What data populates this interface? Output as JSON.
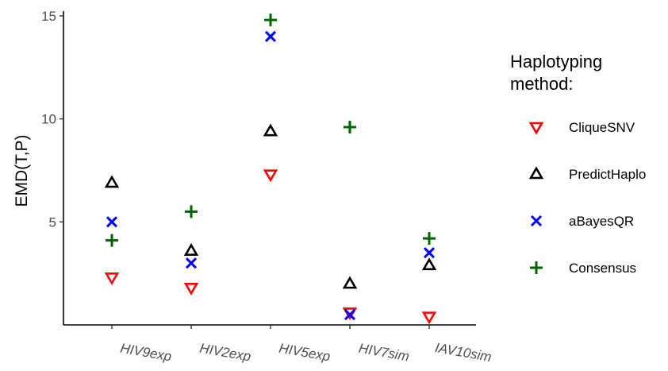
{
  "chart_data": {
    "type": "scatter",
    "title": "",
    "xlabel": "",
    "ylabel": "EMD(T,P)",
    "categories": [
      "HIV9exp",
      "HIV2exp",
      "HIV5exp",
      "HIV7sim",
      "IAV10sim"
    ],
    "ylim": [
      0,
      15
    ],
    "yticks": [
      5,
      10,
      15
    ],
    "grid": false,
    "legend": {
      "title_lines": [
        "Haplotyping",
        "method:"
      ],
      "placement": "right"
    },
    "series": [
      {
        "name": "CliqueSNV",
        "marker": "triangle-down",
        "color": "#ff0000",
        "values": [
          2.3,
          1.8,
          7.3,
          0.6,
          0.4
        ]
      },
      {
        "name": "PredictHaplo",
        "marker": "triangle-up",
        "color": "#000000",
        "values": [
          6.9,
          3.6,
          9.4,
          2.0,
          2.9
        ]
      },
      {
        "name": "aBayesQR",
        "marker": "x",
        "color": "#0000ff",
        "values": [
          5.0,
          3.0,
          14.0,
          0.5,
          3.5
        ]
      },
      {
        "name": "Consensus",
        "marker": "plus",
        "color": "#006400",
        "values": [
          4.1,
          5.5,
          14.8,
          9.6,
          4.2
        ]
      }
    ]
  }
}
